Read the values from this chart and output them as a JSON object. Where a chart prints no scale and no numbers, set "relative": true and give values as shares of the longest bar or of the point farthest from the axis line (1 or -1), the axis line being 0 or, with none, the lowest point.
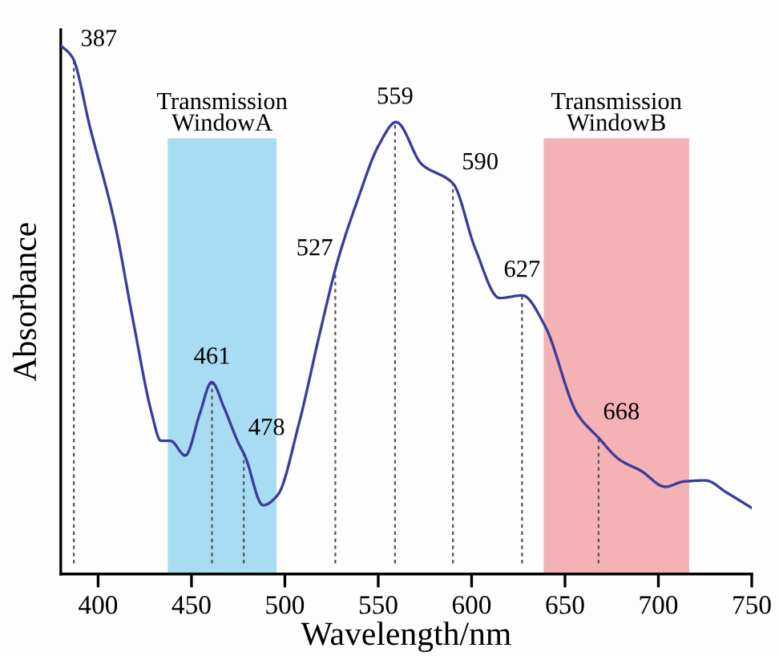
{
  "chart_data": {
    "type": "line",
    "relative": true,
    "xlabel": "Wavelength/nm",
    "ylabel": "Absorbance",
    "xlim": [
      380,
      750
    ],
    "xticks": [
      400,
      450,
      500,
      550,
      600,
      650,
      700,
      750
    ],
    "grid": false,
    "legend": false,
    "marker": "none",
    "line_style": "solid",
    "series": [
      {
        "color": "#3a3c9c",
        "x": [
          380,
          386.3,
          395.8,
          408.7,
          418.7,
          428.7,
          433.6,
          438.7,
          446.7,
          454.5,
          460.8,
          467.4,
          474.6,
          478.9,
          488.3,
          496.1,
          507.5,
          519,
          528.4,
          539,
          550.4,
          559.6,
          573.3,
          590,
          602,
          614.9,
          627.2,
          639.2,
          656.4,
          667.9,
          679.3,
          690.8,
          703.7,
          713.7,
          725.2,
          736.6,
          750
        ],
        "values": [
          1.0,
          0.977,
          0.843,
          0.667,
          0.48,
          0.304,
          0.252,
          0.252,
          0.224,
          0.304,
          0.363,
          0.315,
          0.252,
          0.221,
          0.13,
          0.149,
          0.284,
          0.46,
          0.594,
          0.708,
          0.812,
          0.855,
          0.775,
          0.739,
          0.615,
          0.522,
          0.527,
          0.47,
          0.304,
          0.258,
          0.216,
          0.195,
          0.165,
          0.175,
          0.177,
          0.154,
          0.125
        ]
      }
    ],
    "bands": [
      {
        "axis": "x",
        "from": 437.3,
        "to": 495.5,
        "label": "Transmission\nWindowA",
        "color": "#a8dcf2"
      },
      {
        "axis": "x",
        "from": 638.6,
        "to": 716.5,
        "label": "Transmission\nWindowB",
        "color": "#f4b2b5"
      }
    ],
    "ref_lines": [
      {
        "axis": "x",
        "value": 387,
        "label": "387",
        "color": "#555555",
        "line_style": "dotted"
      },
      {
        "axis": "x",
        "value": 461,
        "label": "461",
        "color": "#555555",
        "line_style": "dotted"
      },
      {
        "axis": "x",
        "value": 478,
        "label": "478",
        "color": "#555555",
        "line_style": "dotted"
      },
      {
        "axis": "x",
        "value": 527,
        "label": "527",
        "color": "#555555",
        "line_style": "dotted"
      },
      {
        "axis": "x",
        "value": 559,
        "label": "559",
        "color": "#555555",
        "line_style": "dotted"
      },
      {
        "axis": "x",
        "value": 590,
        "label": "590",
        "color": "#555555",
        "line_style": "dotted"
      },
      {
        "axis": "x",
        "value": 627,
        "label": "627",
        "color": "#555555",
        "line_style": "dotted"
      },
      {
        "axis": "x",
        "value": 668,
        "label": "668",
        "color": "#555555",
        "line_style": "dotted"
      }
    ]
  }
}
